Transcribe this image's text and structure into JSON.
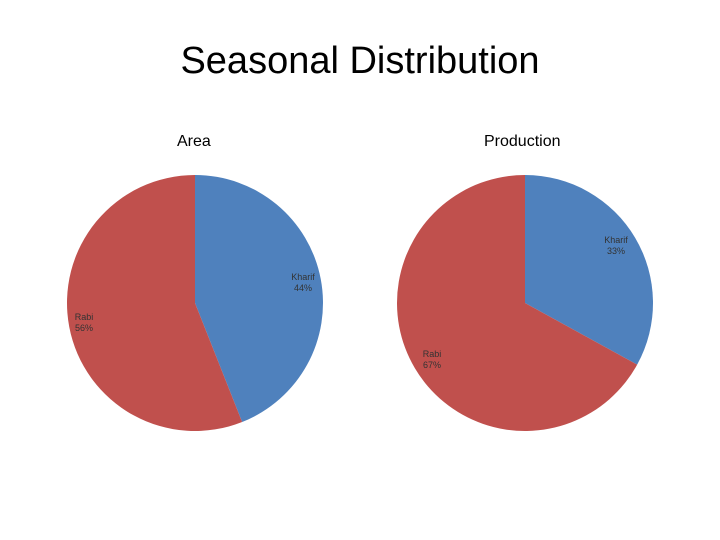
{
  "slide": {
    "title": "Seasonal Distribution"
  },
  "colors": {
    "kharif": "#4f81bd",
    "rabi": "#c0504d"
  },
  "chart_data": [
    {
      "type": "pie",
      "title": "Area",
      "categories": [
        "Kharif",
        "Rabi"
      ],
      "values": [
        44,
        56
      ],
      "labels": [
        "44%",
        "56%"
      ],
      "start_angle_deg": 0,
      "direction": "clockwise",
      "legend": "none"
    },
    {
      "type": "pie",
      "title": "Production",
      "categories": [
        "Kharif",
        "Rabi"
      ],
      "values": [
        33,
        67
      ],
      "labels": [
        "33%",
        "67%"
      ],
      "start_angle_deg": 0,
      "direction": "clockwise",
      "legend": "none"
    }
  ]
}
